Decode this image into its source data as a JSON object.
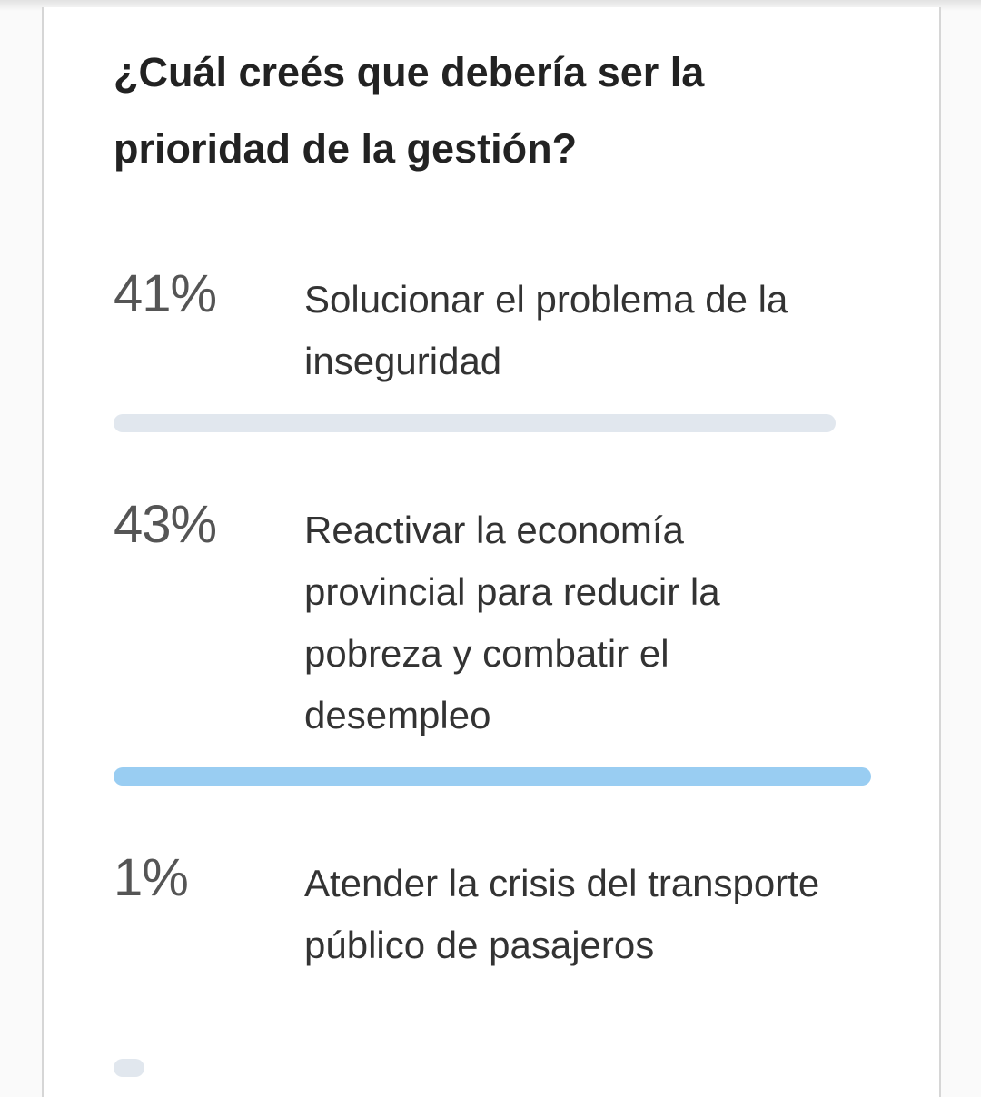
{
  "poll": {
    "question": "¿Cuál creés que debería ser la prioridad de la gestión?",
    "options": [
      {
        "percent": "41%",
        "value": 41,
        "label": "Solucionar el problema de la inseguridad",
        "bar_color": "#e1e7ee"
      },
      {
        "percent": "43%",
        "value": 43,
        "label": "Reactivar la economía provincial para reducir la pobreza y combatir el desempleo",
        "bar_color": "#99cdf2"
      },
      {
        "percent": "1%",
        "value": 1,
        "label": "Atender la crisis del transporte público de pasajeros",
        "bar_color": "#e1e7ee"
      }
    ]
  }
}
